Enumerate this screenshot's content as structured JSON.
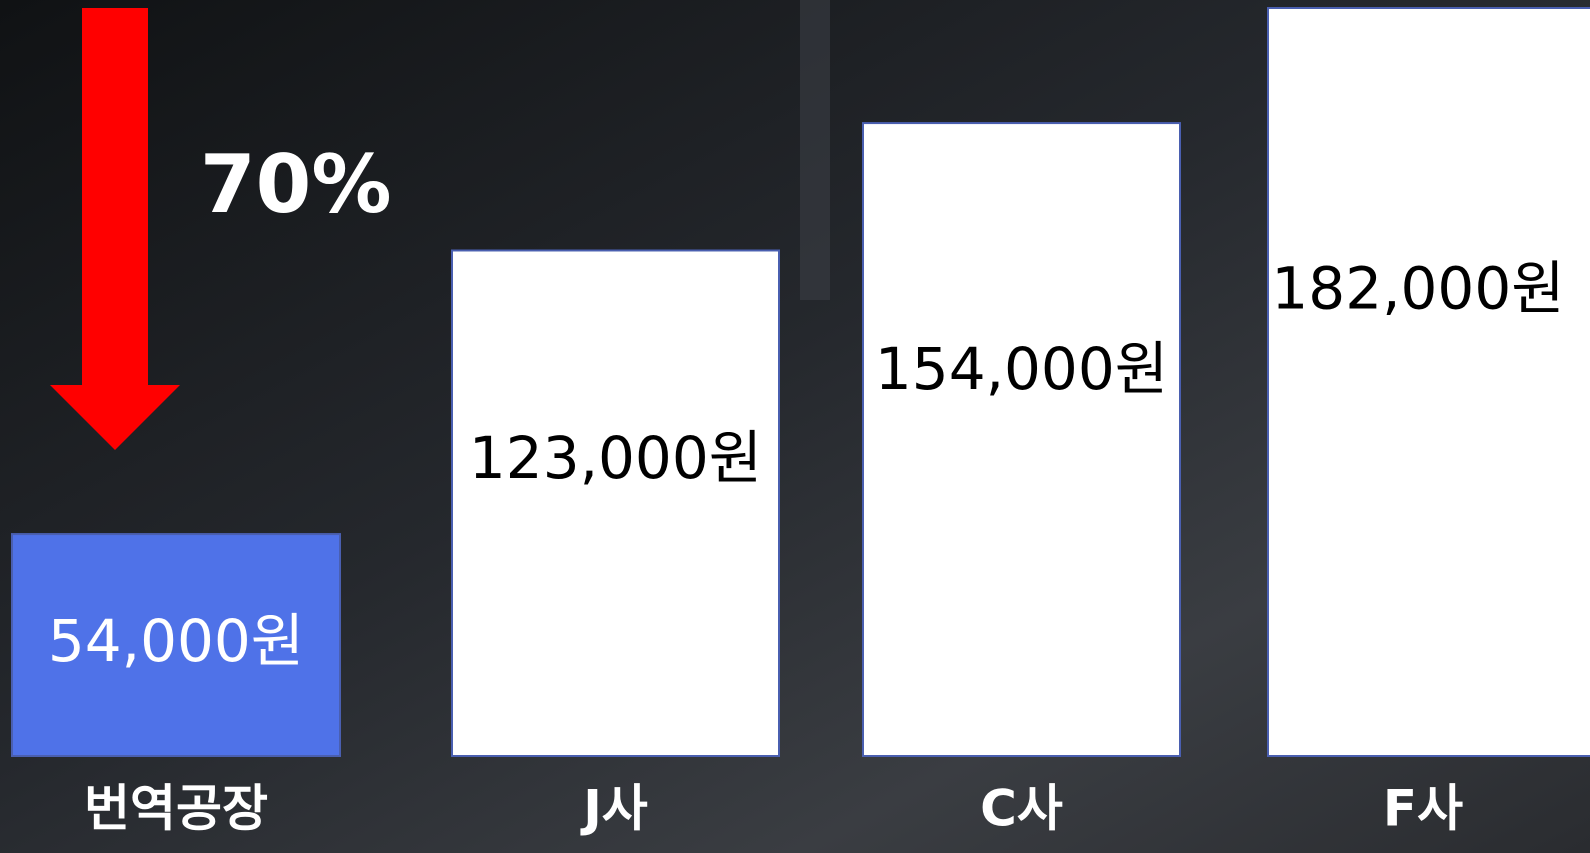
{
  "chart_data": {
    "type": "bar",
    "categories": [
      "번역공장",
      "J사",
      "C사",
      "F사"
    ],
    "values": [
      54000,
      123000,
      154000,
      182000
    ],
    "value_labels": [
      "54,000원",
      "123,000원",
      "154,000원",
      "182,000원"
    ],
    "colors": [
      "#4f72e8",
      "#ffffff",
      "#ffffff",
      "#ffffff"
    ],
    "annotation": "70%"
  }
}
